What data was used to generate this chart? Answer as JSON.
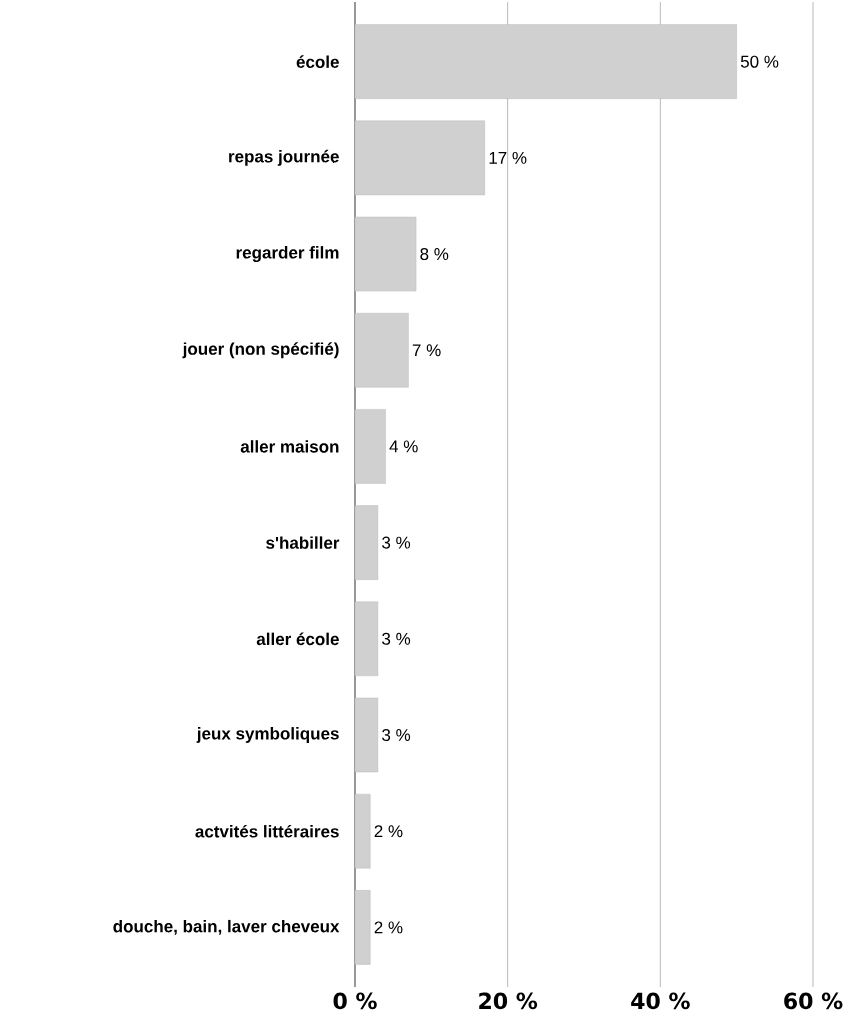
{
  "chart_data": {
    "type": "bar",
    "orientation": "horizontal",
    "categories": [
      "école",
      "repas journée",
      "regarder film",
      "jouer (non spécifié)",
      "aller maison",
      "s'habiller",
      "aller école",
      "jeux symboliques",
      "actvités littéraires",
      "douche, bain, laver cheveux"
    ],
    "values": [
      50,
      17,
      8,
      7,
      4,
      3,
      3,
      3,
      2,
      2
    ],
    "value_labels": [
      "50 %",
      "17 %",
      "8 %",
      "7 %",
      "4 %",
      "3 %",
      "3 %",
      "3 %",
      "2 %",
      "2 %"
    ],
    "color": "#d0d0d0",
    "xlim": [
      0,
      60
    ],
    "xticks": [
      {
        "value": 0,
        "label": "0 %"
      },
      {
        "value": 20,
        "label": "20 %"
      },
      {
        "value": 40,
        "label": "40 %"
      },
      {
        "value": 60,
        "label": "60 %"
      }
    ],
    "grid": "x"
  }
}
